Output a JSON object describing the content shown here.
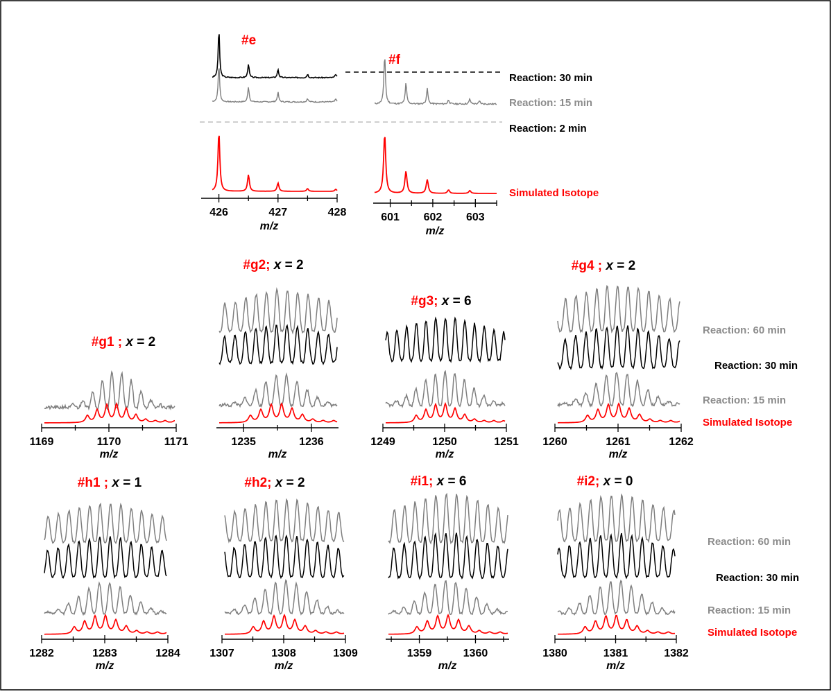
{
  "colors": {
    "black": "#000000",
    "gray": "#7f7f7f",
    "red": "#ff0000",
    "dash_gray": "#bfbfbf",
    "border": "#000000"
  },
  "legends": {
    "top": [
      {
        "text": "Reaction: 30 min",
        "color": "#000000"
      },
      {
        "text": "Reaction: 15 min",
        "color": "#8c8c8c"
      },
      {
        "text": "Reaction: 2 min",
        "color": "#000000"
      },
      {
        "text": "Simulated Isotope",
        "color": "#ff0000"
      }
    ],
    "middle": [
      {
        "text": "Reaction: 60 min",
        "color": "#8c8c8c"
      },
      {
        "text": "Reaction: 30 min",
        "color": "#000000"
      },
      {
        "text": "Reaction: 15 min",
        "color": "#8c8c8c"
      },
      {
        "text": "Simulated Isotope",
        "color": "#ff0000"
      }
    ],
    "bottom": [
      {
        "text": "Reaction: 60 min",
        "color": "#8c8c8c"
      },
      {
        "text": "Reaction: 30 min",
        "color": "#000000"
      },
      {
        "text": "Reaction: 15 min",
        "color": "#8c8c8c"
      },
      {
        "text": "Simulated Isotope",
        "color": "#ff0000"
      }
    ]
  },
  "chart_data": [
    {
      "type": "line",
      "id": "e",
      "label": "#e",
      "x_unit": "",
      "xlabel": "m/z",
      "xlim": [
        425.7,
        428.0
      ],
      "ticks": [
        426,
        427,
        428
      ],
      "peak_start": 426.0,
      "spacing": 0.5,
      "peak_count": 5,
      "traces": [
        "30 min",
        "15 min",
        "Simulated Isotope"
      ]
    },
    {
      "type": "line",
      "id": "f",
      "label": "#f",
      "xlabel": "m/z",
      "xlim": [
        600.6,
        603.5
      ],
      "ticks": [
        601,
        602,
        603
      ],
      "peak_start": 601.0,
      "spacing": 0.5,
      "peak_count": 5,
      "traces": [
        "15 min",
        "Simulated Isotope"
      ]
    },
    {
      "type": "line",
      "id": "g1",
      "label": "#g1 ;",
      "x_value": "x = 2",
      "xlabel": "m/z",
      "xlim": [
        1169,
        1171
      ],
      "ticks": [
        1169,
        1170,
        1171
      ],
      "traces": [
        "60 min",
        "Simulated Isotope"
      ]
    },
    {
      "type": "line",
      "id": "g2",
      "label": "#g2;",
      "x_value": "x = 2",
      "xlabel": "m/z",
      "xlim": [
        1234.6,
        1236.4
      ],
      "ticks": [
        1235,
        1236
      ],
      "traces": [
        "60 min",
        "30 min",
        "15 min",
        "Simulated Isotope"
      ]
    },
    {
      "type": "line",
      "id": "g3",
      "label": "#g3;",
      "x_value": "x = 6",
      "xlabel": "m/z",
      "xlim": [
        1249,
        1251
      ],
      "ticks": [
        1249,
        1250,
        1251
      ],
      "traces": [
        "30 min",
        "15 min",
        "Simulated Isotope"
      ]
    },
    {
      "type": "line",
      "id": "g4",
      "label": "#g4 ;",
      "x_value": "x = 2",
      "xlabel": "m/z",
      "xlim": [
        1260,
        1262
      ],
      "ticks": [
        1260,
        1261,
        1262
      ],
      "traces": [
        "60 min",
        "30 min",
        "15 min",
        "Simulated Isotope"
      ]
    },
    {
      "type": "line",
      "id": "h1",
      "label": "#h1 ;",
      "x_value": "x = 1",
      "xlabel": "m/z",
      "xlim": [
        1282,
        1284
      ],
      "ticks": [
        1282,
        1283,
        1284
      ],
      "traces": [
        "60 min",
        "30 min",
        "15 min",
        "Simulated Isotope"
      ]
    },
    {
      "type": "line",
      "id": "h2",
      "label": "#h2;",
      "x_value": "x = 2",
      "xlabel": "m/z",
      "xlim": [
        1307,
        1309
      ],
      "ticks": [
        1307,
        1308,
        1309
      ],
      "traces": [
        "60 min",
        "30 min",
        "15 min",
        "Simulated Isotope"
      ]
    },
    {
      "type": "line",
      "id": "i1",
      "label": "#i1;",
      "x_value": "x = 6",
      "xlabel": "m/z",
      "xlim": [
        1358.4,
        1360.6
      ],
      "ticks": [
        1359,
        1360
      ],
      "traces": [
        "60 min",
        "30 min",
        "15 min",
        "Simulated Isotope"
      ]
    },
    {
      "type": "line",
      "id": "i2",
      "label": "#i2;",
      "x_value": "x = 0",
      "xlabel": "m/z",
      "xlim": [
        1380,
        1382
      ],
      "ticks": [
        1380,
        1381,
        1382
      ],
      "traces": [
        "60 min",
        "30 min",
        "15 min",
        "Simulated Isotope"
      ]
    }
  ]
}
